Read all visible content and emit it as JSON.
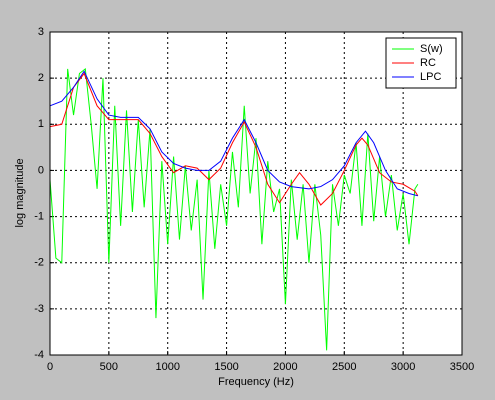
{
  "chart_data": {
    "type": "line",
    "xlabel": "Frequency (Hz)",
    "ylabel": "log magnitude",
    "xlim": [
      0,
      3500
    ],
    "xticks": [
      0,
      500,
      1000,
      1500,
      2000,
      2500,
      3000,
      3500
    ],
    "ylim": [
      -4,
      3
    ],
    "yticks": [
      -4,
      -3,
      -2,
      -1,
      0,
      1,
      2,
      3
    ],
    "grid": true,
    "legend": "upper right",
    "series": [
      {
        "name": "S(w)",
        "color": "#00ff00",
        "x": [
          0,
          50,
          100,
          150,
          200,
          250,
          300,
          350,
          400,
          450,
          500,
          550,
          600,
          650,
          700,
          750,
          800,
          850,
          900,
          950,
          1000,
          1050,
          1100,
          1150,
          1200,
          1250,
          1300,
          1350,
          1400,
          1450,
          1500,
          1550,
          1600,
          1650,
          1700,
          1750,
          1800,
          1850,
          1900,
          1950,
          2000,
          2050,
          2100,
          2150,
          2200,
          2250,
          2300,
          2350,
          2400,
          2450,
          2500,
          2550,
          2600,
          2650,
          2700,
          2750,
          2800,
          2850,
          2900,
          2950,
          3000,
          3050,
          3100,
          3125
        ],
        "values": [
          -0.2,
          -1.9,
          -2.0,
          2.2,
          1.2,
          2.1,
          2.2,
          1.0,
          -0.4,
          2.0,
          -2.0,
          1.4,
          -1.2,
          1.3,
          -0.9,
          1.1,
          -0.8,
          0.9,
          -3.2,
          0.2,
          -1.6,
          0.3,
          -1.5,
          0.1,
          -1.3,
          -0.2,
          -2.8,
          0.0,
          -1.7,
          -0.3,
          -1.2,
          0.4,
          -0.8,
          1.4,
          -0.5,
          0.7,
          -1.6,
          0.2,
          -0.9,
          -0.4,
          -2.9,
          -0.2,
          -1.5,
          -0.3,
          -2.0,
          -0.3,
          -1.4,
          -3.9,
          -0.3,
          -1.2,
          -0.1,
          -0.5,
          0.6,
          -1.2,
          0.8,
          -1.1,
          0.3,
          -1.0,
          -0.1,
          -1.3,
          -0.5,
          -1.6,
          -0.4,
          -0.3
        ]
      },
      {
        "name": "RC",
        "color": "#ff0000",
        "x": [
          0,
          100,
          200,
          290,
          400,
          500,
          600,
          750,
          850,
          950,
          1050,
          1150,
          1250,
          1350,
          1450,
          1550,
          1650,
          1750,
          1850,
          1950,
          2050,
          2120,
          2200,
          2300,
          2400,
          2500,
          2600,
          2650,
          2700,
          2800,
          2900,
          3000,
          3100,
          3125
        ],
        "values": [
          0.95,
          1.0,
          1.8,
          2.1,
          1.4,
          1.1,
          1.1,
          1.1,
          0.8,
          0.3,
          -0.05,
          0.1,
          0.05,
          -0.2,
          0.05,
          0.6,
          1.05,
          0.5,
          -0.3,
          -0.7,
          -0.3,
          -0.05,
          -0.3,
          -0.75,
          -0.5,
          0.0,
          0.55,
          0.7,
          0.55,
          -0.05,
          -0.25,
          -0.3,
          -0.45,
          -0.55
        ]
      },
      {
        "name": "LPC",
        "color": "#0000ff",
        "x": [
          0,
          100,
          200,
          290,
          400,
          500,
          600,
          750,
          850,
          950,
          1050,
          1150,
          1250,
          1350,
          1450,
          1550,
          1650,
          1750,
          1850,
          1950,
          2050,
          2200,
          2300,
          2400,
          2500,
          2600,
          2680,
          2750,
          2850,
          2950,
          3050,
          3125
        ],
        "values": [
          1.4,
          1.5,
          1.8,
          2.15,
          1.55,
          1.2,
          1.15,
          1.15,
          0.9,
          0.4,
          0.15,
          0.05,
          0.0,
          0.0,
          0.2,
          0.7,
          1.1,
          0.6,
          0.0,
          -0.25,
          -0.35,
          -0.4,
          -0.35,
          -0.2,
          0.1,
          0.6,
          0.85,
          0.6,
          0.0,
          -0.4,
          -0.5,
          -0.55
        ]
      }
    ]
  }
}
